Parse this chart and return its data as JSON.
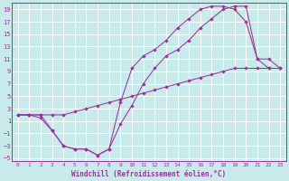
{
  "background_color": "#c8eaea",
  "grid_color": "#ffffff",
  "line_color": "#993399",
  "xlabel": "Windchill (Refroidissement éolien,°C)",
  "xlim": [
    -0.5,
    23.5
  ],
  "ylim": [
    -5.5,
    20
  ],
  "xticks": [
    0,
    1,
    2,
    3,
    4,
    5,
    6,
    7,
    8,
    9,
    10,
    11,
    12,
    13,
    14,
    15,
    16,
    17,
    18,
    19,
    20,
    21,
    22,
    23
  ],
  "yticks": [
    -5,
    -3,
    -1,
    1,
    3,
    5,
    7,
    9,
    11,
    13,
    15,
    17,
    19
  ],
  "line1_x": [
    0,
    1,
    2,
    3,
    4,
    5,
    6,
    7,
    8,
    9,
    10,
    11,
    12,
    13,
    14,
    15,
    16,
    17,
    18,
    19,
    20,
    21,
    22,
    23
  ],
  "line1_y": [
    2,
    2,
    2,
    -0.5,
    -3,
    -3.5,
    -3.5,
    -4.5,
    -3.5,
    0.5,
    3.5,
    7,
    9.5,
    11.5,
    12.5,
    14,
    16,
    17.5,
    19,
    19.5,
    19.5,
    11,
    9.5,
    9.5
  ],
  "line2_x": [
    0,
    1,
    2,
    3,
    4,
    5,
    6,
    7,
    8,
    9,
    10,
    11,
    12,
    13,
    14,
    15,
    16,
    17,
    18,
    19,
    20,
    21,
    22,
    23
  ],
  "line2_y": [
    2,
    2,
    2,
    2,
    2,
    2.5,
    3,
    3.5,
    4,
    4.5,
    5,
    5.5,
    6,
    6.5,
    7,
    7.5,
    8,
    8.5,
    9,
    9.5,
    9.5,
    9.5,
    9.5,
    9.5
  ],
  "line3_x": [
    0,
    1,
    2,
    3,
    4,
    5,
    6,
    7,
    8,
    9,
    10,
    11,
    12,
    13,
    14,
    15,
    16,
    17,
    18,
    19,
    20,
    21,
    22,
    23
  ],
  "line3_y": [
    2,
    2,
    1.5,
    -0.5,
    -3,
    -3.5,
    -3.5,
    -4.5,
    -3.5,
    4,
    9.5,
    11.5,
    12.5,
    14,
    16,
    17.5,
    19,
    19.5,
    19.5,
    19,
    17,
    11,
    11,
    9.5
  ]
}
